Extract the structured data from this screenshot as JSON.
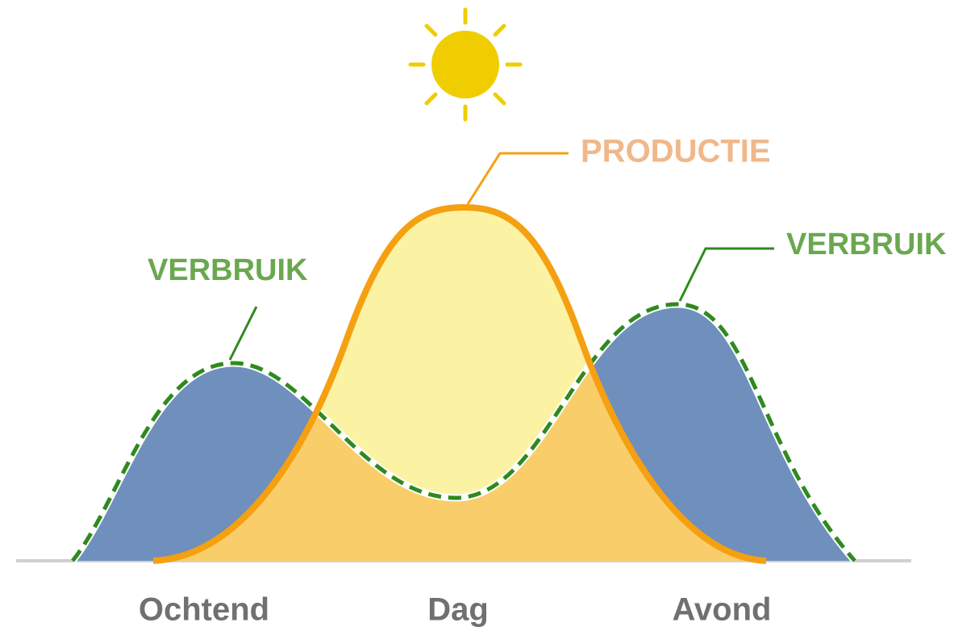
{
  "labels": {
    "production": "PRODUCTIE",
    "consumption_left": "VERBRUIK",
    "consumption_right": "VERBRUIK"
  },
  "x_labels": [
    "Ochtend",
    "Dag",
    "Avond"
  ]
}
